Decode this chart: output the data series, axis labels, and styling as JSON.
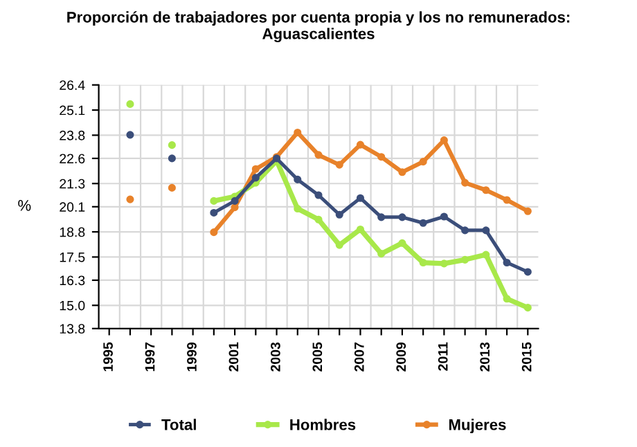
{
  "chart_data": {
    "type": "line",
    "title": "Proporción de trabajadores por cuenta propia y los no remunerados:\nAguascalientes",
    "ylabel": "%",
    "categories": [
      "1995",
      null,
      "1997",
      null,
      "1999",
      null,
      "2001",
      null,
      "2003",
      null,
      "2005",
      null,
      "2007",
      null,
      "2009",
      null,
      "2011",
      null,
      "2013",
      null,
      "2015"
    ],
    "series": [
      {
        "name": "Total",
        "color": "#3b4e7a",
        "values": [
          null,
          23.82,
          null,
          22.6,
          null,
          19.79,
          20.4,
          21.6,
          22.6,
          21.51,
          20.7,
          19.69,
          20.55,
          19.56,
          19.56,
          19.26,
          19.59,
          18.88,
          18.88,
          17.21,
          16.73
        ]
      },
      {
        "name": "Hombres",
        "color": "#a8e84a",
        "values": [
          null,
          25.41,
          null,
          23.29,
          null,
          20.4,
          20.63,
          21.34,
          22.48,
          20.0,
          19.44,
          18.12,
          18.93,
          17.67,
          18.22,
          17.21,
          17.16,
          17.36,
          17.62,
          15.34,
          14.88
        ]
      },
      {
        "name": "Mujeres",
        "color": "#e8822a",
        "values": [
          null,
          20.48,
          null,
          21.08,
          null,
          18.78,
          20.07,
          22.05,
          22.68,
          23.94,
          22.78,
          22.27,
          23.31,
          22.68,
          21.89,
          22.43,
          23.54,
          21.34,
          20.96,
          20.45,
          19.87
        ]
      }
    ],
    "ylim": [
      13.8,
      26.4
    ],
    "yticks": [
      13.8,
      {
        "value": 15.0,
        "label": "15.0"
      },
      16.3,
      17.5,
      18.8,
      20.1,
      21.3,
      22.6,
      23.8,
      25.1,
      26.4
    ],
    "grid": true,
    "legend": "bottom",
    "marker": "circle",
    "line_style": "solid"
  }
}
